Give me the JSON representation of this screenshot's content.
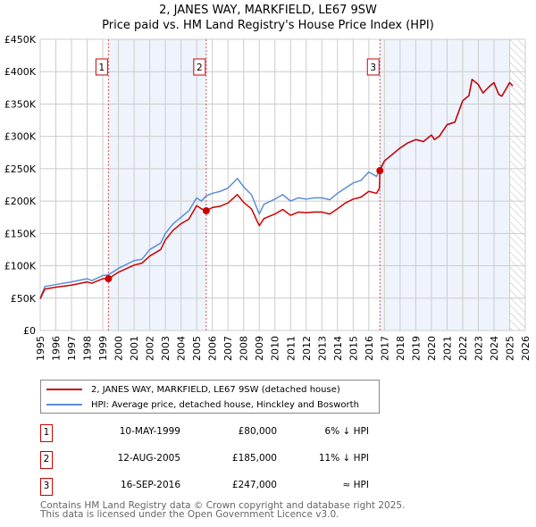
{
  "title": "2, JANES WAY, MARKFIELD, LE67 9SW",
  "subtitle": "Price paid vs. HM Land Registry's House Price Index (HPI)",
  "chart_data": {
    "type": "line",
    "title": "Price paid vs. HM Land Registry's House Price Index (HPI)",
    "xlim": [
      1995,
      2026
    ],
    "ylim": [
      0,
      450000
    ],
    "x_ticks": [
      "1995",
      "1996",
      "1997",
      "1998",
      "1999",
      "2000",
      "2001",
      "2002",
      "2003",
      "2004",
      "2005",
      "2006",
      "2007",
      "2008",
      "2009",
      "2010",
      "2011",
      "2012",
      "2013",
      "2014",
      "2015",
      "2016",
      "2017",
      "2018",
      "2019",
      "2020",
      "2021",
      "2022",
      "2023",
      "2024",
      "2025",
      "2026"
    ],
    "y_ticks": [
      {
        "v": 0,
        "l": "£0"
      },
      {
        "v": 50000,
        "l": "£50K"
      },
      {
        "v": 100000,
        "l": "£100K"
      },
      {
        "v": 150000,
        "l": "£150K"
      },
      {
        "v": 200000,
        "l": "£200K"
      },
      {
        "v": 250000,
        "l": "£250K"
      },
      {
        "v": 300000,
        "l": "£300K"
      },
      {
        "v": 350000,
        "l": "£350K"
      },
      {
        "v": 400000,
        "l": "£400K"
      },
      {
        "v": 450000,
        "l": "£450K"
      }
    ],
    "grid": true,
    "shaded_ranges": [
      [
        1999.36,
        2005.61
      ],
      [
        2016.71,
        2025.0
      ]
    ],
    "forecast_from": 2025.0,
    "series": [
      {
        "name": "2, JANES WAY, MARKFIELD, LE67 9SW (detached house)",
        "color": "#cc0000",
        "x": [
          1995,
          1995.3,
          1996,
          1997,
          1998,
          1998.3,
          1999,
          1999.36,
          2000,
          2001,
          2001.5,
          2002,
          2002.7,
          2003,
          2003.5,
          2004,
          2004.5,
          2005,
          2005.3,
          2005.61,
          2006,
          2006.5,
          2007,
          2007.6,
          2008,
          2008.5,
          2009,
          2009.3,
          2010,
          2010.5,
          2011,
          2011.5,
          2012,
          2012.5,
          2013,
          2013.5,
          2014,
          2014.5,
          2015,
          2015.5,
          2016,
          2016.5,
          2016.68,
          2016.71,
          2017,
          2017.5,
          2018,
          2018.5,
          2019,
          2019.5,
          2020,
          2020.2,
          2020.5,
          2021,
          2021.5,
          2022,
          2022.4,
          2022.6,
          2023,
          2023.3,
          2023.7,
          2024,
          2024.3,
          2024.5,
          2025,
          2025.2
        ],
        "y": [
          49000,
          64000,
          67000,
          70000,
          75000,
          73000,
          80000,
          80000,
          90000,
          101000,
          104000,
          115000,
          125000,
          140000,
          155000,
          165000,
          172000,
          193000,
          188000,
          185000,
          190000,
          192000,
          197000,
          210000,
          198000,
          188000,
          162000,
          173000,
          180000,
          187000,
          178000,
          183000,
          182000,
          183000,
          183000,
          180000,
          188000,
          197000,
          203000,
          206000,
          215000,
          212000,
          220000,
          247000,
          262000,
          272000,
          282000,
          290000,
          295000,
          292000,
          302000,
          295000,
          300000,
          318000,
          322000,
          355000,
          363000,
          388000,
          380000,
          367000,
          377000,
          383000,
          365000,
          362000,
          383000,
          378000
        ]
      },
      {
        "name": "HPI: Average price, detached house, Hinckley and Bosworth",
        "color": "#5b8fd4",
        "x": [
          1995,
          1995.3,
          1996,
          1997,
          1998,
          1998.3,
          1999,
          1999.36,
          2000,
          2001,
          2001.5,
          2002,
          2002.7,
          2003,
          2003.5,
          2004,
          2004.5,
          2005,
          2005.3,
          2005.61,
          2006,
          2006.5,
          2007,
          2007.6,
          2008,
          2008.5,
          2009,
          2009.3,
          2010,
          2010.5,
          2011,
          2011.5,
          2012,
          2012.5,
          2013,
          2013.5,
          2014,
          2014.5,
          2015,
          2015.5,
          2016,
          2016.5,
          2016.71,
          2017,
          2017.5,
          2018,
          2018.5,
          2019,
          2019.5,
          2020,
          2020.2,
          2020.5,
          2021,
          2021.5,
          2022,
          2022.4,
          2022.6,
          2023,
          2023.3,
          2023.7,
          2024,
          2024.3,
          2024.5,
          2025,
          2025.2
        ],
        "y": [
          50000,
          68000,
          71000,
          75000,
          80000,
          77000,
          85000,
          86000,
          96000,
          108000,
          110000,
          125000,
          135000,
          150000,
          165000,
          175000,
          185000,
          205000,
          200000,
          208000,
          212000,
          215000,
          220000,
          235000,
          222000,
          210000,
          180000,
          195000,
          203000,
          210000,
          200000,
          205000,
          203000,
          205000,
          205000,
          202000,
          212000,
          220000,
          228000,
          232000,
          245000,
          238000,
          250000,
          262000,
          272000,
          282000,
          290000,
          295000,
          292000,
          302000,
          295000,
          300000,
          318000,
          322000,
          355000,
          363000,
          388000,
          380000,
          367000,
          377000,
          383000,
          365000,
          362000,
          383000,
          378000
        ]
      }
    ],
    "sales": [
      {
        "label": "1",
        "x": 1999.36,
        "y": 80000
      },
      {
        "label": "2",
        "x": 2005.61,
        "y": 185000
      },
      {
        "label": "3",
        "x": 2016.71,
        "y": 247000
      }
    ]
  },
  "legend": {
    "items": [
      "2, JANES WAY, MARKFIELD, LE67 9SW (detached house)",
      "HPI: Average price, detached house, Hinckley and Bosworth"
    ]
  },
  "table": [
    {
      "num": "1",
      "date": "10-MAY-1999",
      "price": "£80,000",
      "hpi": "6% ↓ HPI"
    },
    {
      "num": "2",
      "date": "12-AUG-2005",
      "price": "£185,000",
      "hpi": "11% ↓ HPI"
    },
    {
      "num": "3",
      "date": "16-SEP-2016",
      "price": "£247,000",
      "hpi": "≈ HPI"
    }
  ],
  "footer": [
    "Contains HM Land Registry data © Crown copyright and database right 2025.",
    "This data is licensed under the Open Government Licence v3.0."
  ]
}
